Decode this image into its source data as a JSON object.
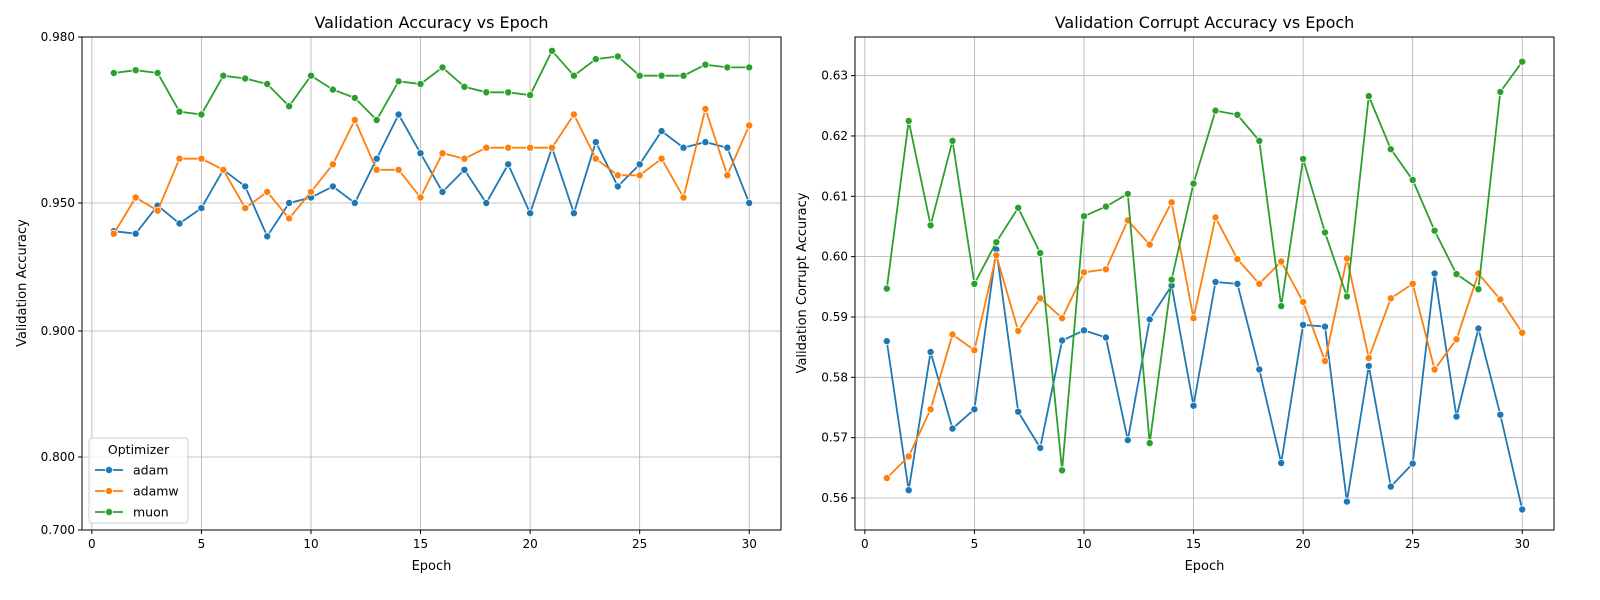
{
  "chart_data": [
    {
      "type": "line",
      "title": "Validation Accuracy vs Epoch",
      "xlabel": "Epoch",
      "ylabel": "Validation Accuracy",
      "xlim": [
        -0.45,
        31.45
      ],
      "x_ticks": [
        0,
        5,
        10,
        15,
        20,
        25,
        30
      ],
      "y_ticks": [
        0.7,
        0.8,
        0.9,
        0.95,
        0.98
      ],
      "y_tick_labels": [
        "0.700",
        "0.800",
        "0.900",
        "0.950",
        "0.980"
      ],
      "y_scale_note": "nonlinear: stretched near top",
      "grid": true,
      "legend": {
        "title": "Optimizer",
        "placement": "lower-left"
      },
      "x": [
        1,
        2,
        3,
        4,
        5,
        6,
        7,
        8,
        9,
        10,
        11,
        12,
        13,
        14,
        15,
        16,
        17,
        18,
        19,
        20,
        21,
        22,
        23,
        24,
        25,
        26,
        27,
        28,
        29,
        30
      ],
      "series": [
        {
          "name": "adam",
          "color": "#1f77b4",
          "values": [
            0.939,
            0.938,
            0.949,
            0.942,
            0.948,
            0.956,
            0.953,
            0.937,
            0.95,
            0.951,
            0.953,
            0.95,
            0.958,
            0.966,
            0.959,
            0.952,
            0.956,
            0.95,
            0.957,
            0.946,
            0.96,
            0.946,
            0.961,
            0.953,
            0.957,
            0.963,
            0.96,
            0.961,
            0.96,
            0.95
          ]
        },
        {
          "name": "adamw",
          "color": "#ff7f0e",
          "values": [
            0.938,
            0.951,
            0.947,
            0.958,
            0.958,
            0.956,
            0.948,
            0.952,
            0.944,
            0.952,
            0.957,
            0.965,
            0.956,
            0.956,
            0.951,
            0.959,
            0.958,
            0.96,
            0.96,
            0.96,
            0.96,
            0.966,
            0.958,
            0.955,
            0.955,
            0.958,
            0.951,
            0.967,
            0.955,
            0.964
          ]
        },
        {
          "name": "muon",
          "color": "#2ca02c",
          "values": [
            0.9735,
            0.974,
            0.9735,
            0.9665,
            0.966,
            0.973,
            0.9725,
            0.9715,
            0.9675,
            0.973,
            0.9705,
            0.969,
            0.965,
            0.972,
            0.9715,
            0.9745,
            0.971,
            0.97,
            0.97,
            0.9695,
            0.9775,
            0.973,
            0.976,
            0.9765,
            0.973,
            0.973,
            0.973,
            0.975,
            0.9745,
            0.9745
          ]
        }
      ]
    },
    {
      "type": "line",
      "title": "Validation Corrupt Accuracy vs Epoch",
      "xlabel": "Epoch",
      "ylabel": "Validation Corrupt Accuracy",
      "xlim": [
        -0.45,
        31.45
      ],
      "ylim": [
        0.5547,
        0.6364
      ],
      "x_ticks": [
        0,
        5,
        10,
        15,
        20,
        25,
        30
      ],
      "y_ticks": [
        0.56,
        0.57,
        0.58,
        0.59,
        0.6,
        0.61,
        0.62,
        0.63
      ],
      "y_tick_labels": [
        "0.56",
        "0.57",
        "0.58",
        "0.59",
        "0.60",
        "0.61",
        "0.62",
        "0.63"
      ],
      "grid": true,
      "x": [
        1,
        2,
        3,
        4,
        5,
        6,
        7,
        8,
        9,
        10,
        11,
        12,
        13,
        14,
        15,
        16,
        17,
        18,
        19,
        20,
        21,
        22,
        23,
        24,
        25,
        26,
        27,
        28,
        29,
        30
      ],
      "series": [
        {
          "name": "adam",
          "color": "#1f77b4",
          "values": [
            0.586,
            0.5613,
            0.5842,
            0.5715,
            0.5747,
            0.6012,
            0.5743,
            0.5683,
            0.5861,
            0.5878,
            0.5866,
            0.5696,
            0.5896,
            0.5952,
            0.5753,
            0.5958,
            0.5955,
            0.5813,
            0.5658,
            0.5887,
            0.5884,
            0.5594,
            0.5819,
            0.5619,
            0.5657,
            0.5972,
            0.5735,
            0.5881,
            0.5738,
            0.5581
          ]
        },
        {
          "name": "adamw",
          "color": "#ff7f0e",
          "values": [
            0.5633,
            0.5669,
            0.5747,
            0.5871,
            0.5845,
            0.6002,
            0.5877,
            0.5931,
            0.5898,
            0.5974,
            0.5979,
            0.606,
            0.602,
            0.609,
            0.5898,
            0.6065,
            0.5996,
            0.5955,
            0.5992,
            0.5925,
            0.5827,
            0.5997,
            0.5832,
            0.5931,
            0.5955,
            0.5813,
            0.5863,
            0.5972,
            0.5929,
            0.5874
          ]
        },
        {
          "name": "muon",
          "color": "#2ca02c",
          "values": [
            0.5947,
            0.6225,
            0.6052,
            0.6192,
            0.5955,
            0.6024,
            0.6081,
            0.6006,
            0.5646,
            0.6067,
            0.6083,
            0.6104,
            0.5691,
            0.5962,
            0.6121,
            0.6242,
            0.6235,
            0.6192,
            0.5918,
            0.6162,
            0.604,
            0.5934,
            0.6266,
            0.6178,
            0.6127,
            0.6043,
            0.5971,
            0.5946,
            0.6273,
            0.6323
          ]
        }
      ]
    }
  ]
}
